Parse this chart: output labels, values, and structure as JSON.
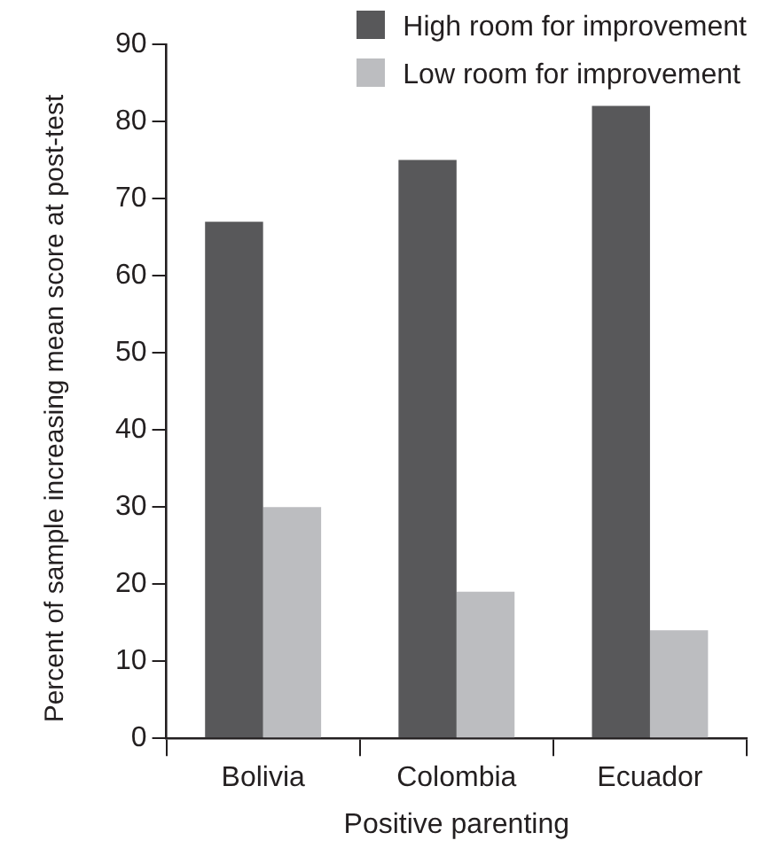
{
  "chart_data": {
    "type": "bar",
    "xlabel": "Positive parenting",
    "ylabel": "Percent of sample increasing mean score at post-test",
    "categories": [
      "Bolivia",
      "Colombia",
      "Ecuador"
    ],
    "series": [
      {
        "name": "High room for improvement",
        "color": "#58585a",
        "values": [
          67,
          75,
          82
        ]
      },
      {
        "name": "Low room for improvement",
        "color": "#bcbdc0",
        "values": [
          30,
          19,
          14
        ]
      }
    ],
    "ylim": [
      0,
      90
    ],
    "yticks": [
      0,
      10,
      20,
      30,
      40,
      50,
      60,
      70,
      80,
      90
    ],
    "grid": false,
    "legend": "top right"
  }
}
